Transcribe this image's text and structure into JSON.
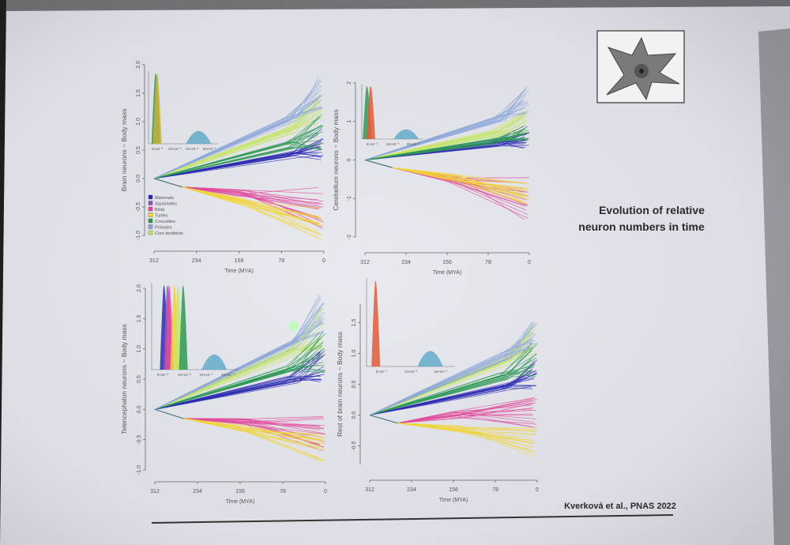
{
  "slide": {
    "title_line1": "Evolution of relative",
    "title_line2": "neuron numbers in time",
    "citation": "Kverková et al., PNAS 2022"
  },
  "legend": [
    {
      "label": "Mammals",
      "color": "#2b2bb0"
    },
    {
      "label": "Squamates",
      "color": "#8a55b8"
    },
    {
      "label": "Birds",
      "color": "#e0489a"
    },
    {
      "label": "Turtles",
      "color": "#f0d43a"
    },
    {
      "label": "Crocodiles",
      "color": "#2f9a55"
    },
    {
      "label": "Primates",
      "color": "#8fa8d8"
    },
    {
      "label": "Core landbirds",
      "color": "#c6e66a"
    }
  ],
  "chart_data": [
    {
      "type": "line",
      "ylabel": "Brain neurons ~ Body mass",
      "xlabel": "Time (MYA)",
      "x_ticks": [
        "312",
        "234",
        "156",
        "78",
        "0"
      ],
      "y_ticks": [
        "2.0",
        "1.5",
        "1.0",
        "0.5",
        "0.0",
        "-0.5",
        "-1.0"
      ],
      "ylim": [
        -1.0,
        2.0
      ],
      "xlim": [
        312,
        0
      ],
      "inset_ticks": [
        "5×10⁻³",
        "10×10⁻³",
        "15×10⁻³",
        "20×10⁻³"
      ],
      "series": [
        {
          "color": "#2b2bb0",
          "y_range": [
            0.3,
            0.9
          ]
        },
        {
          "color": "#e0489a",
          "y_range": [
            -0.9,
            -0.1
          ]
        },
        {
          "color": "#f0d43a",
          "y_range": [
            -1.1,
            -0.5
          ]
        },
        {
          "color": "#c6e66a",
          "y_range": [
            0.9,
            1.5
          ]
        },
        {
          "color": "#2f9a55",
          "y_range": [
            0.5,
            1.2
          ]
        },
        {
          "color": "#8fa8d8",
          "y_range": [
            1.2,
            1.8
          ]
        }
      ]
    },
    {
      "type": "line",
      "ylabel": "Cerebellum neurons ~ Body mass",
      "xlabel": "Time (MYA)",
      "x_ticks": [
        "312",
        "234",
        "156",
        "78",
        "0"
      ],
      "y_ticks": [
        "2",
        "1",
        "0",
        "-1",
        "-2"
      ],
      "ylim": [
        -2,
        2
      ],
      "xlim": [
        312,
        0
      ],
      "inset_ticks": [
        "5×10⁻³",
        "15×10⁻³",
        "25×10⁻³"
      ],
      "series": [
        {
          "color": "#2b2bb0",
          "y_range": [
            0.3,
            0.9
          ]
        },
        {
          "color": "#e0489a",
          "y_range": [
            -1.6,
            -0.4
          ]
        },
        {
          "color": "#f0d43a",
          "y_range": [
            -1.2,
            -0.6
          ]
        },
        {
          "color": "#c6e66a",
          "y_range": [
            0.7,
            1.3
          ]
        },
        {
          "color": "#2f9a55",
          "y_range": [
            0.4,
            1.0
          ]
        },
        {
          "color": "#8fa8d8",
          "y_range": [
            1.2,
            1.9
          ]
        }
      ]
    },
    {
      "type": "line",
      "ylabel": "Telencephalon neurons ~ Body mass",
      "xlabel": "Time (MYA)",
      "x_ticks": [
        "312",
        "234",
        "156",
        "78",
        "0"
      ],
      "y_ticks": [
        "2.0",
        "1.5",
        "1.0",
        "0.5",
        "0.0",
        "-0.5",
        "-1.0"
      ],
      "ylim": [
        -1.0,
        2.0
      ],
      "xlim": [
        312,
        0
      ],
      "inset_ticks": [
        "5×10⁻³",
        "10×10⁻³",
        "15×10⁻³",
        "20×10⁻³"
      ],
      "series": [
        {
          "color": "#2b2bb0",
          "y_range": [
            0.4,
            1.0
          ]
        },
        {
          "color": "#e0489a",
          "y_range": [
            -0.7,
            -0.1
          ]
        },
        {
          "color": "#f0d43a",
          "y_range": [
            -0.9,
            -0.4
          ]
        },
        {
          "color": "#c6e66a",
          "y_range": [
            1.0,
            1.7
          ]
        },
        {
          "color": "#2f9a55",
          "y_range": [
            0.6,
            1.3
          ]
        },
        {
          "color": "#8fa8d8",
          "y_range": [
            1.2,
            1.9
          ]
        }
      ]
    },
    {
      "type": "line",
      "ylabel": "Rest of brain neurons ~ Body mass",
      "xlabel": "Time (MYA)",
      "x_ticks": [
        "312",
        "234",
        "156",
        "78",
        "0"
      ],
      "y_ticks": [
        "1.5",
        "1.0",
        "0.5",
        "0.0",
        "-0.5"
      ],
      "ylim": [
        -0.8,
        1.8
      ],
      "xlim": [
        312,
        0
      ],
      "inset_ticks": [
        "5×10⁻³",
        "10×10⁻³",
        "15×10⁻³"
      ],
      "series": [
        {
          "color": "#2b2bb0",
          "y_range": [
            0.4,
            0.9
          ]
        },
        {
          "color": "#e0489a",
          "y_range": [
            -0.3,
            0.3
          ]
        },
        {
          "color": "#f0d43a",
          "y_range": [
            -0.7,
            -0.2
          ]
        },
        {
          "color": "#c6e66a",
          "y_range": [
            1.0,
            1.5
          ]
        },
        {
          "color": "#2f9a55",
          "y_range": [
            0.6,
            1.2
          ]
        },
        {
          "color": "#8fa8d8",
          "y_range": [
            1.1,
            1.6
          ]
        }
      ]
    }
  ]
}
